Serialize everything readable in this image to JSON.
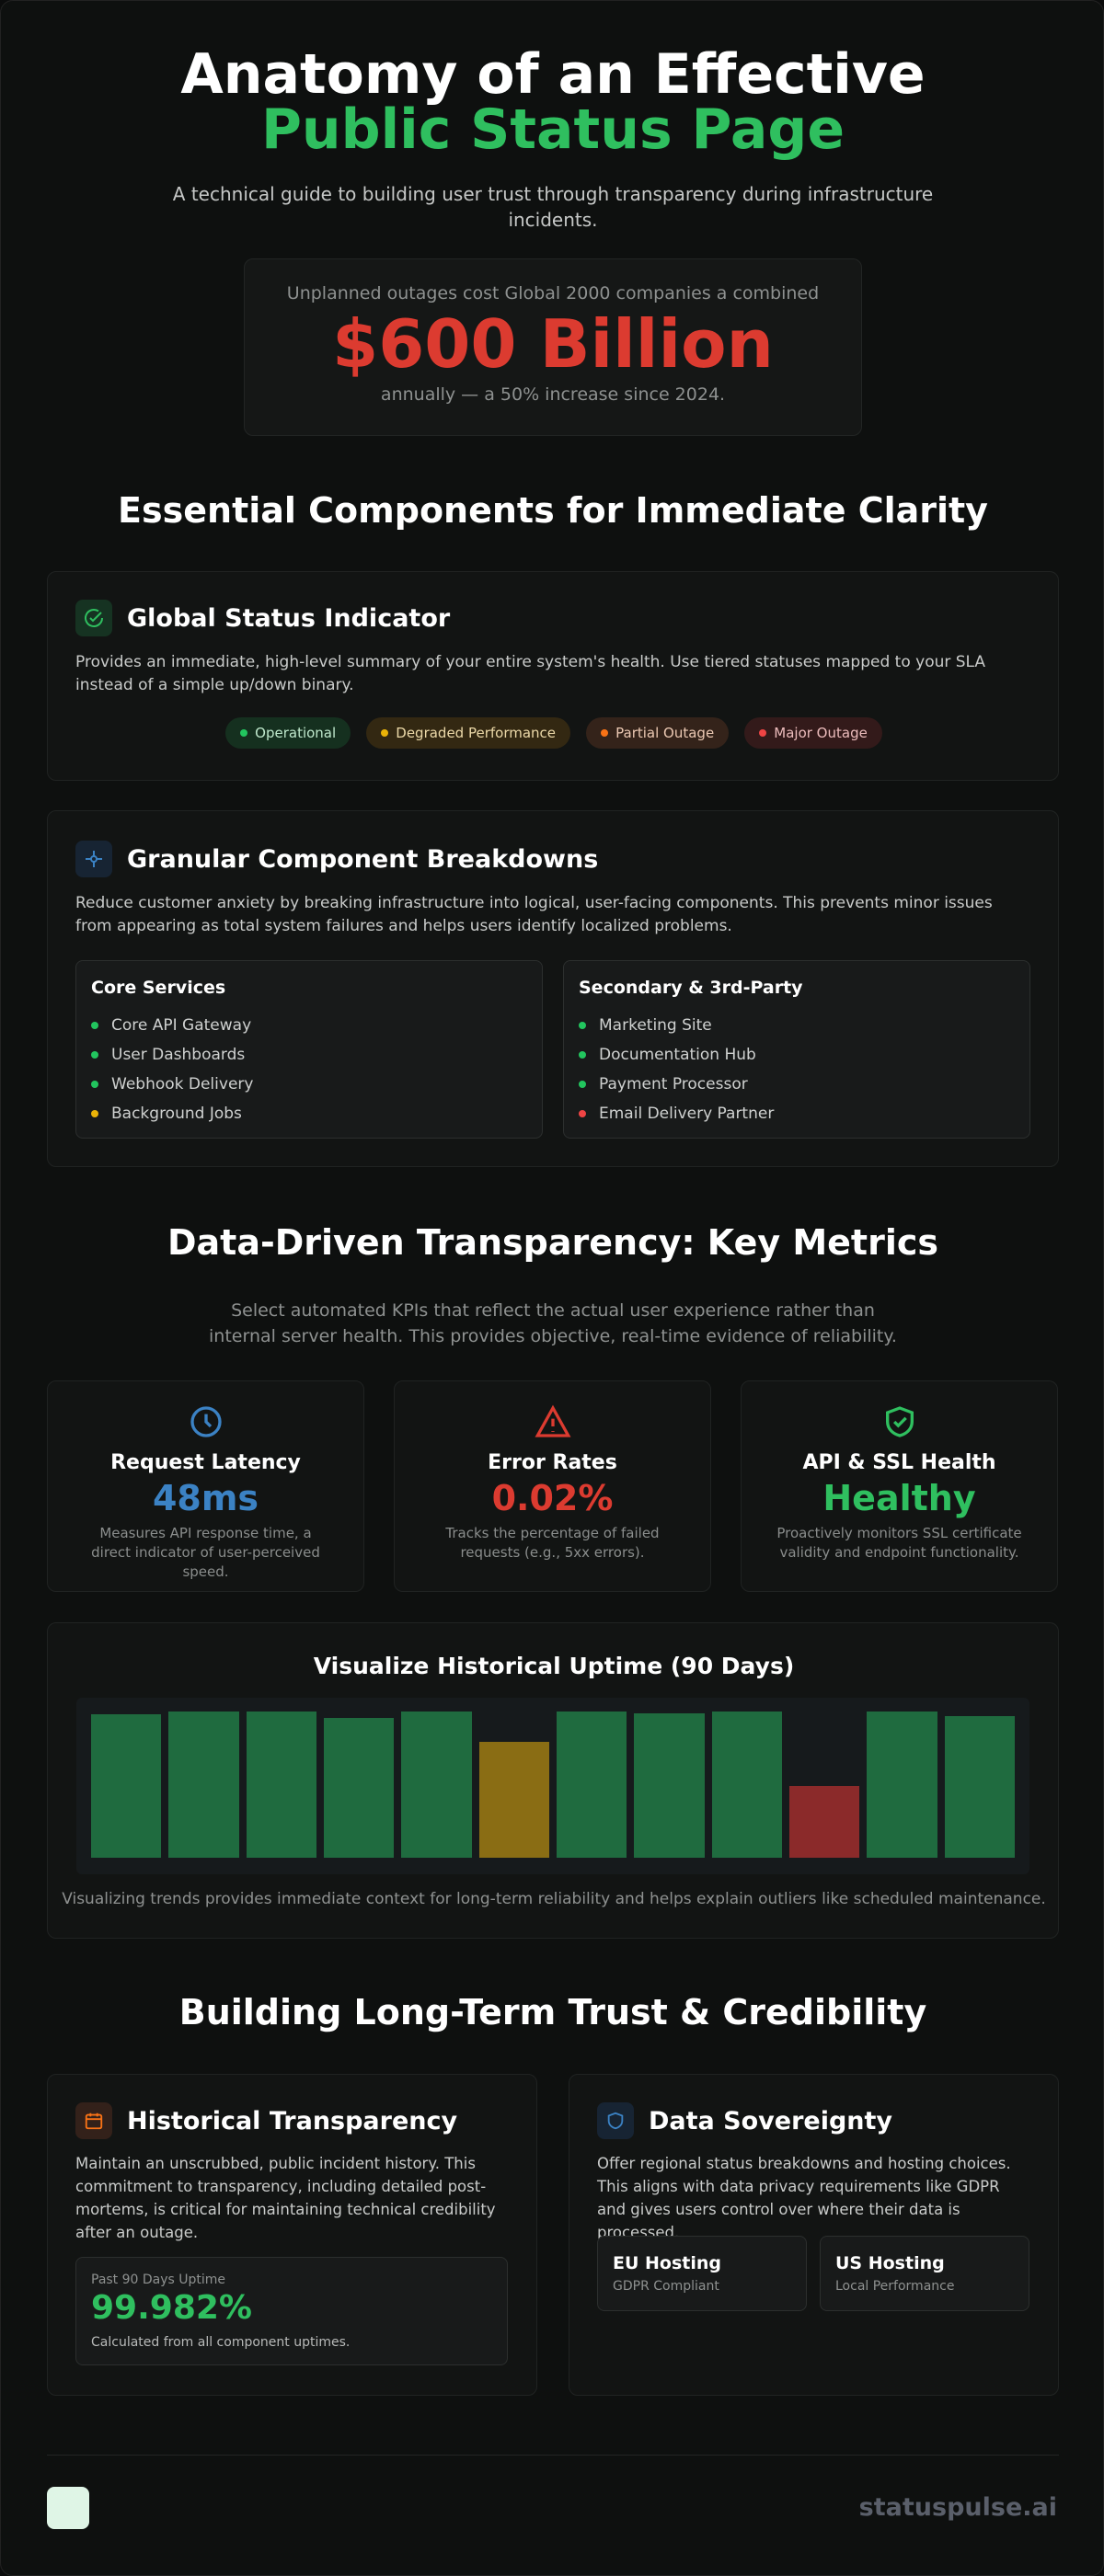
{
  "hero": {
    "title": "Anatomy of an Effective",
    "title_highlight": "Public Status Page",
    "subtitle": "A technical guide to building user trust through transparency during infrastructure incidents.",
    "stat_lead": "Unplanned outages cost Global 2000 companies a combined",
    "stat_value": "$600 Billion",
    "stat_note": "annually — a 50% increase since 2024."
  },
  "components": {
    "heading": "Essential Components for Immediate Clarity",
    "status_indicator": {
      "title": "Global Status Indicator",
      "text": "Provides an immediate, high-level summary of your entire system's health. Use tiered statuses mapped to your SLA instead of a simple up/down binary.",
      "badges": [
        {
          "label": "Operational",
          "color": "#22c55e"
        },
        {
          "label": "Degraded Performance",
          "color": "#eab308"
        },
        {
          "label": "Partial Outage",
          "color": "#f97316"
        },
        {
          "label": "Major Outage",
          "color": "#ef4444"
        }
      ]
    },
    "breakdowns": {
      "title": "Granular Component Breakdowns",
      "text": "Reduce customer anxiety by breaking infrastructure into logical, user-facing components. This prevents minor issues from appearing as total system failures and helps users identify localized problems.",
      "groups": [
        {
          "title": "Core Services",
          "items": [
            {
              "label": "Core API Gateway",
              "color": "#22c55e"
            },
            {
              "label": "User Dashboards",
              "color": "#22c55e"
            },
            {
              "label": "Webhook Delivery",
              "color": "#22c55e"
            },
            {
              "label": "Background Jobs",
              "color": "#eab308"
            }
          ]
        },
        {
          "title": "Secondary & 3rd-Party",
          "items": [
            {
              "label": "Marketing Site",
              "color": "#22c55e"
            },
            {
              "label": "Documentation Hub",
              "color": "#22c55e"
            },
            {
              "label": "Payment Processor",
              "color": "#22c55e"
            },
            {
              "label": "Email Delivery Partner",
              "color": "#ef4444"
            }
          ]
        }
      ]
    }
  },
  "metrics": {
    "heading": "Data-Driven Transparency: Key Metrics",
    "intro": "Select automated KPIs that reflect the actual user experience rather than internal server health. This provides objective, real-time evidence of reliability.",
    "cards": [
      {
        "title": "Request Latency",
        "value": "48ms",
        "text": "Measures API response time, a direct indicator of user-perceived speed.",
        "color": "#3b82c4"
      },
      {
        "title": "Error Rates",
        "value": "0.02%",
        "text": "Tracks the percentage of failed requests (e.g., 5xx errors).",
        "color": "#dc3b30"
      },
      {
        "title": "API & SSL Health",
        "value": "Healthy",
        "text": "Proactively monitors SSL certificate validity and endpoint functionality.",
        "color": "#2fbf5f"
      }
    ],
    "uptime": {
      "title": "Visualize Historical Uptime (90 Days)",
      "values": [
        90,
        92,
        92,
        88,
        92,
        73,
        92,
        91,
        92,
        45,
        92,
        89
      ],
      "colors": [
        "#1f6b3f",
        "#1f6b3f",
        "#1f6b3f",
        "#1f6b3f",
        "#1f6b3f",
        "#8a6d14",
        "#1f6b3f",
        "#1f6b3f",
        "#1f6b3f",
        "#8b2a2a",
        "#1f6b3f",
        "#1f6b3f"
      ],
      "caption": "Visualizing trends provides immediate context for long-term reliability and helps explain outliers like scheduled maintenance."
    }
  },
  "trust": {
    "heading": "Building Long-Term Trust & Credibility",
    "history": {
      "title": "Historical Transparency",
      "text": "Maintain an unscrubbed, public incident history. This commitment to transparency, including detailed post-mortems, is critical for maintaining technical credibility after an outage.",
      "metric_label": "Past 90 Days Uptime",
      "metric_value": "99.982%",
      "metric_note": "Calculated from all component uptimes."
    },
    "sovereignty": {
      "title": "Data Sovereignty",
      "text": "Offer regional status breakdowns and hosting choices. This aligns with data privacy requirements like GDPR and gives users control over where their data is processed.",
      "options": [
        {
          "title": "EU Hosting",
          "note": "GDPR Compliant"
        },
        {
          "title": "US Hosting",
          "note": "Local Performance"
        }
      ]
    }
  },
  "footer": {
    "brand": "statuspulse.ai"
  }
}
